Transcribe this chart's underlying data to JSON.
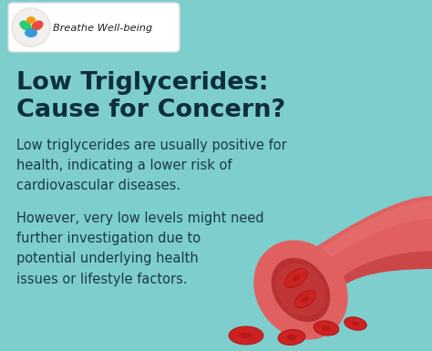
{
  "background_color": "#7ecece",
  "title_line1": "Low Triglycerides:",
  "title_line2": "Cause for Concern?",
  "title_color": "#0d2d3d",
  "title_fontsize": 19.5,
  "body1": "Low triglycerides are usually positive for\nhealth, indicating a lower risk of\ncardiovascular diseases.",
  "body2": "However, very low levels might need\nfurther investigation due to\npotential underlying health\nissues or lifestyle factors.",
  "body_color": "#1a3a4a",
  "body_fontsize": 10.5,
  "logo_box_color": "#ffffff",
  "logo_text": "Breathe Well-being",
  "logo_text_color": "#222222",
  "vessel_outer": "#d94040",
  "vessel_mid": "#e06060",
  "vessel_inner_dark": "#b83030",
  "vessel_highlight": "#e87070",
  "rbc_color": "#cc2222",
  "rbc_dark": "#aa1111"
}
